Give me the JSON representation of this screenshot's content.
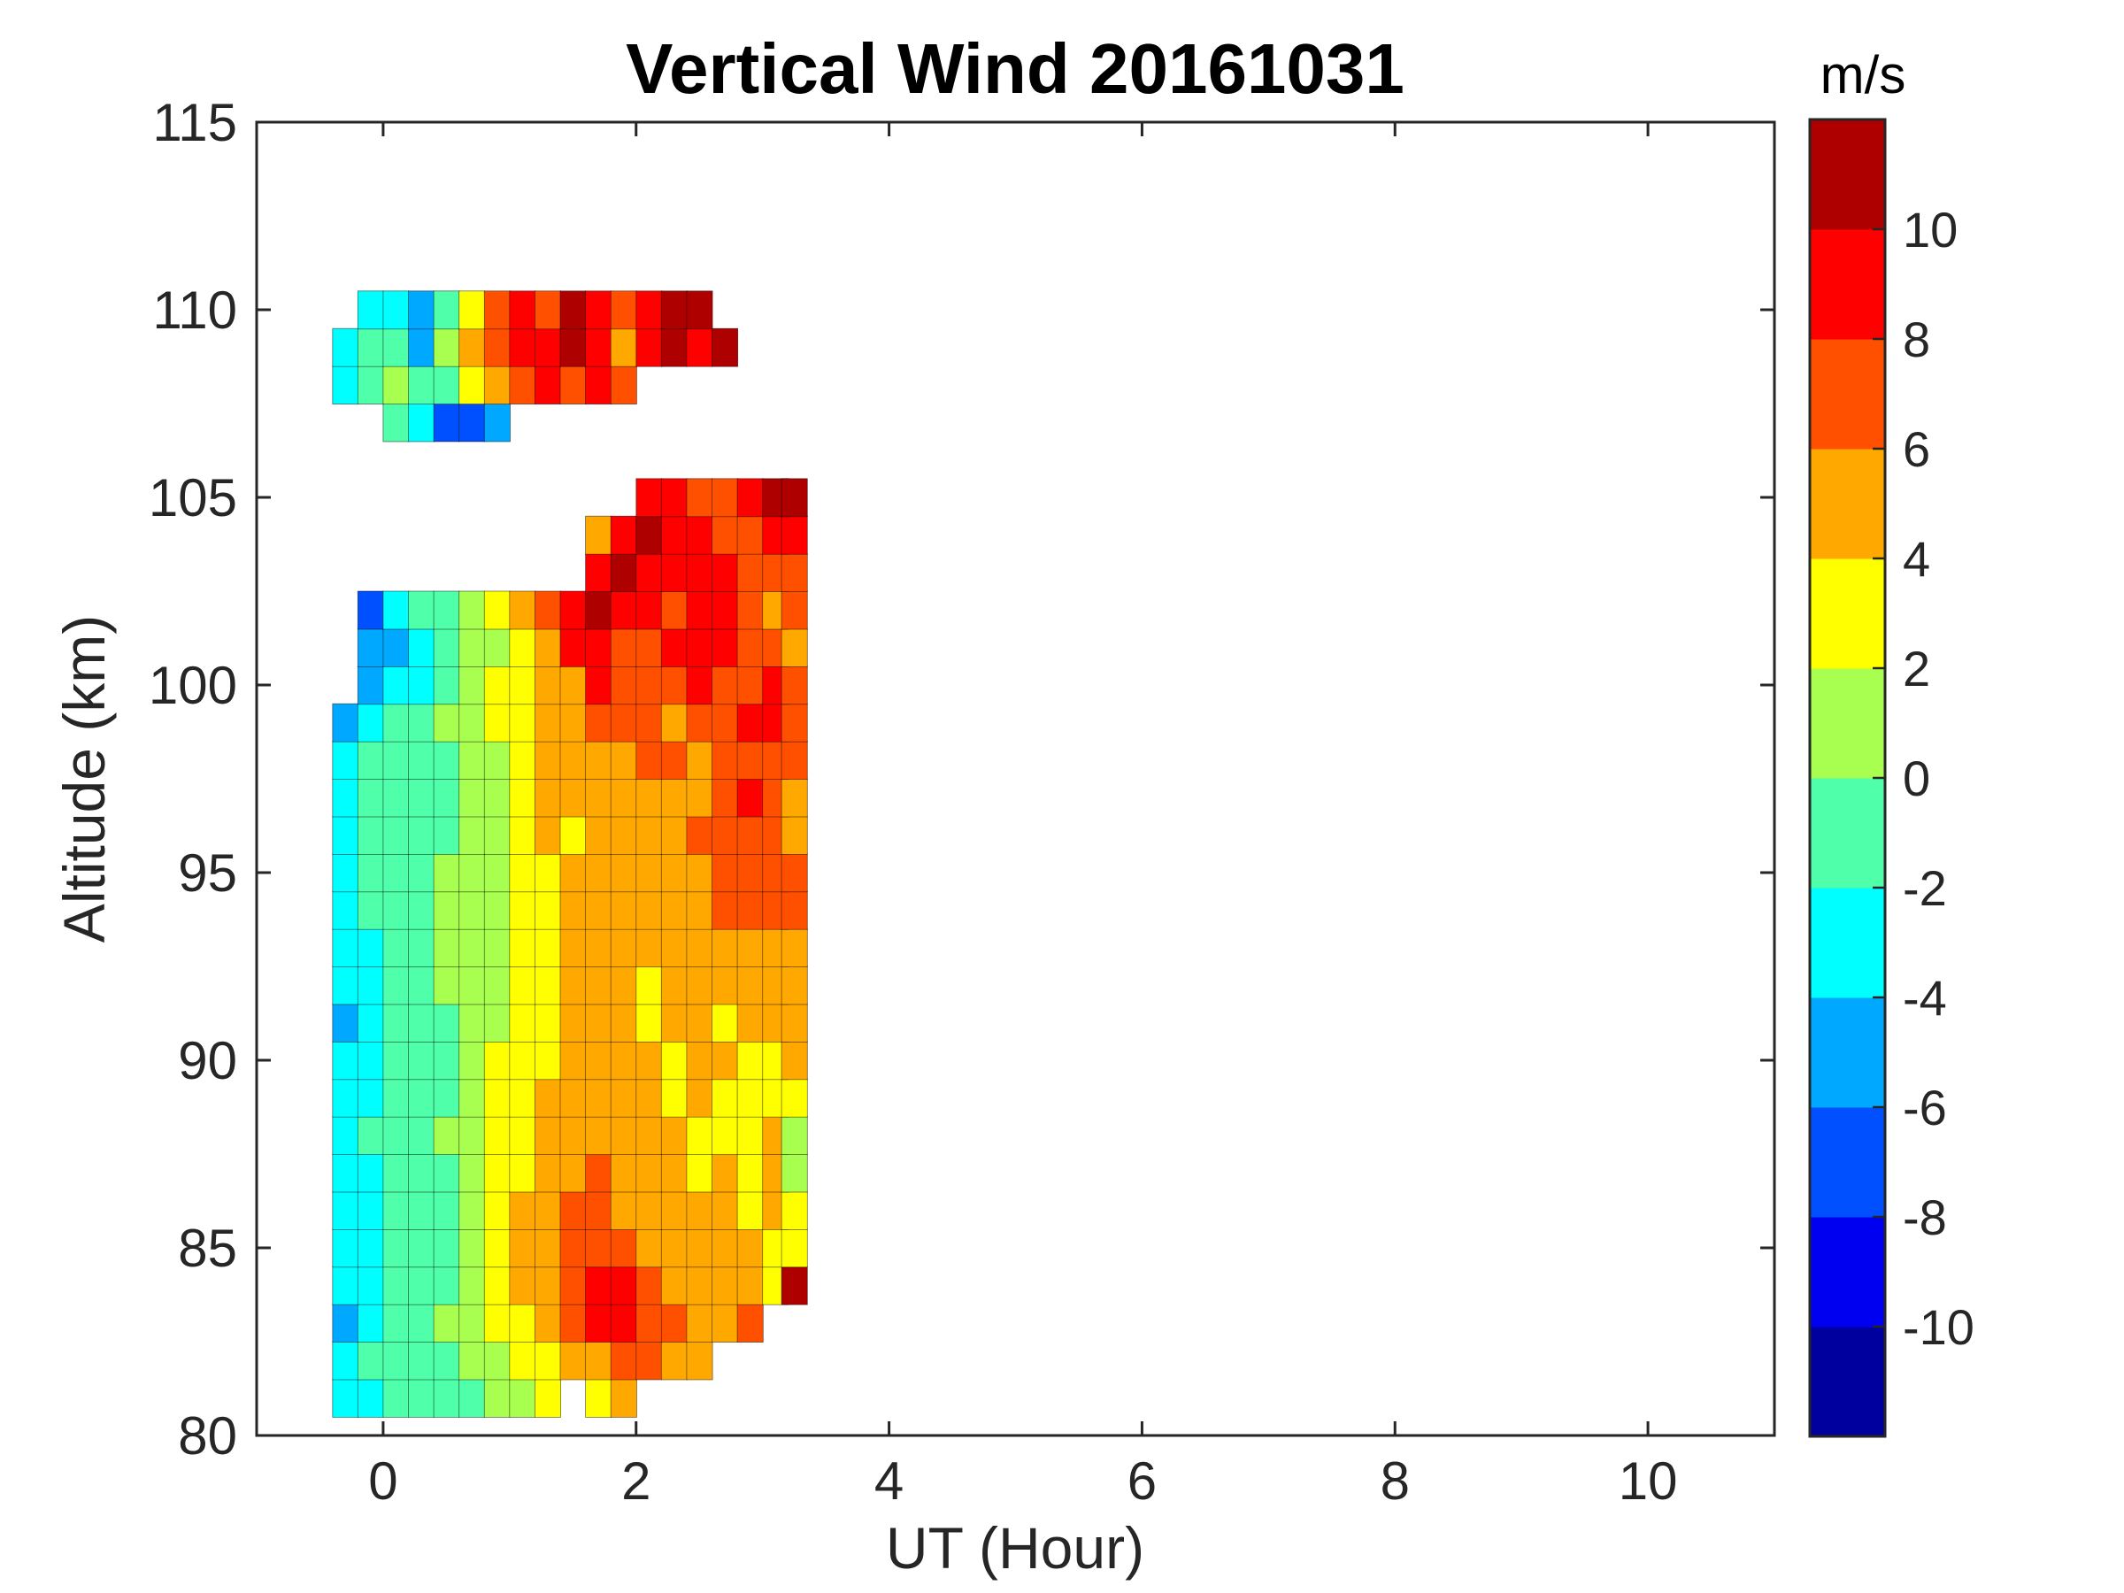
{
  "chart_data": {
    "type": "heatmap",
    "subtype": "filled-contour",
    "title": "Vertical Wind 20161031",
    "xlabel": "UT (Hour)",
    "ylabel": "Altitude (km)",
    "xlim": [
      -1,
      11
    ],
    "ylim": [
      80,
      115
    ],
    "x_ticks": [
      0,
      2,
      4,
      6,
      8,
      10
    ],
    "y_ticks": [
      80,
      85,
      90,
      95,
      100,
      105,
      110,
      115
    ],
    "grid": false,
    "colorbar": {
      "unit": "m/s",
      "range": [
        -12,
        12
      ],
      "step": 2,
      "tick_values": [
        -10,
        -8,
        -6,
        -4,
        -2,
        0,
        2,
        4,
        6,
        8,
        10
      ],
      "colors": [
        "#00009f",
        "#0000f0",
        "#0050ff",
        "#00a8ff",
        "#00ffff",
        "#50ffaa",
        "#a8ff50",
        "#ffff00",
        "#ffa800",
        "#ff5000",
        "#ff0000",
        "#af0000"
      ]
    },
    "x": [
      -0.3,
      -0.1,
      0.1,
      0.3,
      0.5,
      0.7,
      0.9,
      1.1,
      1.3,
      1.5,
      1.7,
      1.9,
      2.1,
      2.3,
      2.5,
      2.7,
      2.9,
      3.1,
      3.25
    ],
    "y": [
      81,
      82,
      83,
      84,
      85,
      86,
      87,
      88,
      89,
      90,
      91,
      92,
      93,
      94,
      95,
      96,
      97,
      98,
      99,
      100,
      101,
      102,
      103,
      104,
      105,
      106,
      107,
      108,
      109,
      110
    ],
    "values": [
      [
        -4,
        -3,
        -2,
        -1,
        -2,
        -1,
        0,
        1,
        2,
        null,
        3,
        4,
        null,
        null,
        null,
        null,
        null,
        null,
        null
      ],
      [
        -4,
        -2,
        -1,
        -2,
        -1,
        0,
        1,
        2,
        3,
        4,
        5,
        6,
        7,
        4,
        5,
        null,
        null,
        null,
        null
      ],
      [
        -5,
        -3,
        -1,
        -1,
        0,
        1,
        2,
        3,
        5,
        6,
        8,
        9,
        7,
        6,
        4,
        5,
        6,
        null,
        null
      ],
      [
        -4,
        -3,
        -2,
        -1,
        -1,
        0,
        2,
        4,
        5,
        7,
        8,
        9,
        6,
        5,
        4,
        5,
        4,
        3,
        11
      ],
      [
        -4,
        -3,
        -2,
        -2,
        -1,
        0,
        2,
        4,
        5,
        6,
        7,
        6,
        5,
        4,
        5,
        5,
        4,
        3,
        3
      ],
      [
        -3,
        -3,
        -2,
        -1,
        -1,
        1,
        2,
        4,
        5,
        6,
        6,
        5,
        5,
        4,
        4,
        4,
        3,
        4,
        3
      ],
      [
        -3,
        -3,
        -1,
        -1,
        -1,
        0,
        2,
        3,
        4,
        5,
        6,
        5,
        4,
        4,
        3,
        4,
        3,
        4,
        1
      ],
      [
        -3,
        -2,
        -1,
        -1,
        0,
        0,
        2,
        3,
        4,
        4,
        5,
        4,
        4,
        4,
        3,
        3,
        3,
        4,
        0
      ],
      [
        -4,
        -3,
        -2,
        -1,
        -1,
        0,
        2,
        3,
        4,
        4,
        5,
        4,
        4,
        3,
        4,
        3,
        3,
        3,
        3
      ],
      [
        -4,
        -3,
        -2,
        -1,
        -1,
        0,
        2,
        3,
        3,
        4,
        4,
        4,
        4,
        3,
        4,
        4,
        3,
        3,
        4
      ],
      [
        -5,
        -3,
        -2,
        -1,
        -1,
        0,
        1,
        3,
        3,
        4,
        4,
        4,
        3,
        4,
        4,
        3,
        4,
        4,
        4
      ],
      [
        -4,
        -3,
        -1,
        -1,
        0,
        0,
        1,
        3,
        3,
        4,
        4,
        4,
        3,
        4,
        4,
        4,
        4,
        5,
        4
      ],
      [
        -4,
        -3,
        -2,
        -1,
        0,
        0,
        1,
        2,
        3,
        4,
        4,
        5,
        4,
        4,
        5,
        5,
        5,
        5,
        5
      ],
      [
        -4,
        -2,
        -1,
        -1,
        0,
        0,
        1,
        3,
        3,
        4,
        4,
        5,
        5,
        4,
        5,
        6,
        6,
        7,
        6
      ],
      [
        -3,
        -2,
        -1,
        -1,
        0,
        0,
        1,
        3,
        3,
        4,
        4,
        5,
        5,
        5,
        5,
        7,
        6,
        7,
        7
      ],
      [
        -3,
        -2,
        -1,
        -1,
        -1,
        0,
        1,
        3,
        4,
        3,
        4,
        5,
        4,
        5,
        6,
        7,
        7,
        6,
        5
      ],
      [
        -3,
        -2,
        -1,
        -1,
        -1,
        0,
        1,
        3,
        4,
        4,
        4,
        5,
        5,
        5,
        5,
        6,
        8,
        6,
        5
      ],
      [
        -4,
        -2,
        -2,
        -1,
        -1,
        0,
        1,
        2,
        4,
        5,
        5,
        5,
        6,
        6,
        5,
        6,
        7,
        7,
        6
      ],
      [
        -5,
        -4,
        -2,
        -1,
        0,
        1,
        2,
        3,
        4,
        4,
        6,
        6,
        6,
        5,
        6,
        7,
        8,
        9,
        7
      ],
      [
        null,
        -5,
        -4,
        -3,
        -1,
        0,
        2,
        3,
        4,
        5,
        8,
        6,
        6,
        7,
        8,
        7,
        6,
        8,
        6
      ],
      [
        null,
        -6,
        -5,
        -3,
        -1,
        0,
        1,
        3,
        5,
        8,
        9,
        7,
        7,
        8,
        9,
        8,
        7,
        6,
        5
      ],
      [
        null,
        -7,
        -3,
        -2,
        -1,
        1,
        2,
        4,
        7,
        9,
        10,
        8,
        9,
        7,
        8,
        9,
        6,
        5,
        6
      ],
      [
        null,
        null,
        null,
        null,
        null,
        null,
        null,
        null,
        null,
        null,
        9,
        10,
        9,
        8,
        9,
        8,
        7,
        6,
        7
      ],
      [
        null,
        null,
        null,
        null,
        null,
        null,
        null,
        null,
        null,
        null,
        5,
        9,
        11,
        9,
        8,
        7,
        6,
        8,
        9
      ],
      [
        null,
        null,
        null,
        null,
        null,
        null,
        null,
        null,
        null,
        null,
        null,
        null,
        9,
        8,
        6,
        7,
        9,
        10,
        12
      ],
      [
        null,
        null,
        null,
        null,
        null,
        null,
        null,
        null,
        null,
        null,
        null,
        null,
        null,
        null,
        null,
        null,
        null,
        null,
        null
      ],
      [
        null,
        null,
        -1,
        -3,
        -7,
        -8,
        -6,
        null,
        null,
        null,
        null,
        null,
        null,
        null,
        null,
        null,
        null,
        null,
        null
      ],
      [
        -4,
        -2,
        0,
        -2,
        -1,
        3,
        5,
        7,
        8,
        6,
        9,
        6,
        null,
        null,
        null,
        null,
        null,
        null,
        null
      ],
      [
        -3,
        -2,
        -1,
        -5,
        1,
        4,
        6,
        8,
        9,
        10,
        9,
        5,
        8,
        10,
        9,
        11,
        null,
        null,
        null
      ],
      [
        null,
        -3,
        -4,
        -6,
        -2,
        2,
        6,
        8,
        7,
        10,
        8,
        7,
        9,
        11,
        10,
        null,
        null,
        null,
        null
      ]
    ]
  }
}
